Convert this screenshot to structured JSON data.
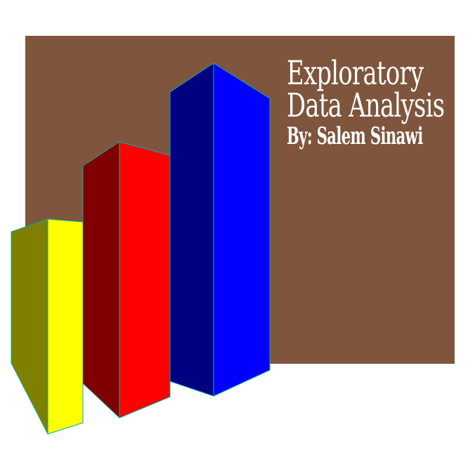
{
  "title": {
    "line1": "Exploratory",
    "line2": "Data Analysis"
  },
  "author": "By: Salem Sinawi",
  "colors": {
    "background_panel": "#7f553d",
    "yellow_front": "#ffff00",
    "yellow_side": "#808000",
    "red_front": "#ff0000",
    "red_side": "#800000",
    "blue_front": "#0000ff",
    "blue_side": "#000080",
    "edge": "#00b0a0",
    "text": "#ffffff"
  }
}
